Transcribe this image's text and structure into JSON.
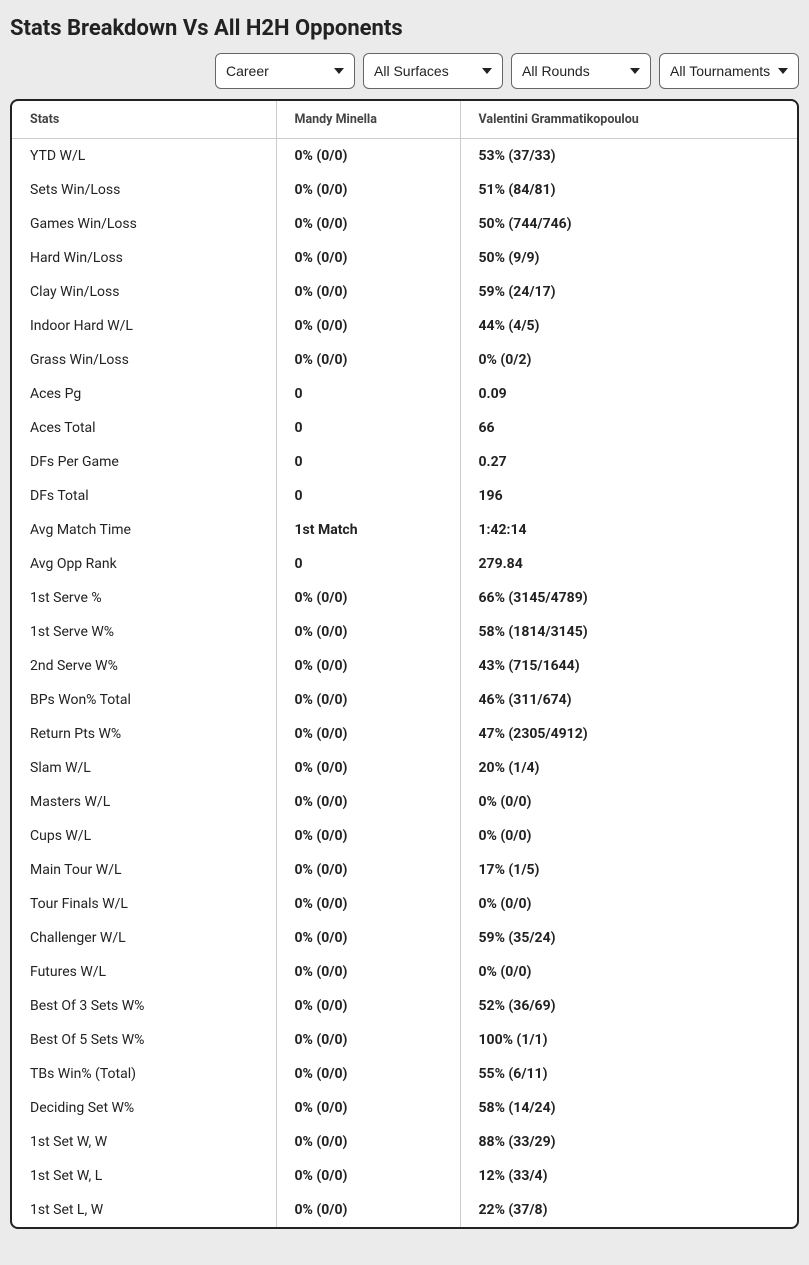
{
  "title": "Stats Breakdown Vs All H2H Opponents",
  "filters": {
    "career": "Career",
    "surfaces": "All Surfaces",
    "rounds": "All Rounds",
    "tournaments": "All Tournaments"
  },
  "table": {
    "columns": {
      "stats": "Stats",
      "p1": "Mandy Minella",
      "p2": "Valentini Grammatikopoulou"
    },
    "rows": [
      {
        "stat": "YTD W/L",
        "p1": "0% (0/0)",
        "p2": "53% (37/33)"
      },
      {
        "stat": "Sets Win/Loss",
        "p1": "0% (0/0)",
        "p2": "51% (84/81)"
      },
      {
        "stat": "Games Win/Loss",
        "p1": "0% (0/0)",
        "p2": "50% (744/746)"
      },
      {
        "stat": "Hard Win/Loss",
        "p1": "0% (0/0)",
        "p2": "50% (9/9)"
      },
      {
        "stat": "Clay Win/Loss",
        "p1": "0% (0/0)",
        "p2": "59% (24/17)"
      },
      {
        "stat": "Indoor Hard W/L",
        "p1": "0% (0/0)",
        "p2": "44% (4/5)"
      },
      {
        "stat": "Grass Win/Loss",
        "p1": "0% (0/0)",
        "p2": "0% (0/2)"
      },
      {
        "stat": "Aces Pg",
        "p1": "0",
        "p2": "0.09"
      },
      {
        "stat": "Aces Total",
        "p1": "0",
        "p2": "66"
      },
      {
        "stat": "DFs Per Game",
        "p1": "0",
        "p2": "0.27"
      },
      {
        "stat": "DFs Total",
        "p1": "0",
        "p2": "196"
      },
      {
        "stat": "Avg Match Time",
        "p1": "1st Match",
        "p2": "1:42:14"
      },
      {
        "stat": "Avg Opp Rank",
        "p1": "0",
        "p2": "279.84"
      },
      {
        "stat": "1st Serve %",
        "p1": "0% (0/0)",
        "p2": "66% (3145/4789)"
      },
      {
        "stat": "1st Serve W%",
        "p1": "0% (0/0)",
        "p2": "58% (1814/3145)"
      },
      {
        "stat": "2nd Serve W%",
        "p1": "0% (0/0)",
        "p2": "43% (715/1644)"
      },
      {
        "stat": "BPs Won% Total",
        "p1": "0% (0/0)",
        "p2": "46% (311/674)"
      },
      {
        "stat": "Return Pts W%",
        "p1": "0% (0/0)",
        "p2": "47% (2305/4912)"
      },
      {
        "stat": "Slam W/L",
        "p1": "0% (0/0)",
        "p2": "20% (1/4)"
      },
      {
        "stat": "Masters W/L",
        "p1": "0% (0/0)",
        "p2": "0% (0/0)"
      },
      {
        "stat": "Cups W/L",
        "p1": "0% (0/0)",
        "p2": "0% (0/0)"
      },
      {
        "stat": "Main Tour W/L",
        "p1": "0% (0/0)",
        "p2": "17% (1/5)"
      },
      {
        "stat": "Tour Finals W/L",
        "p1": "0% (0/0)",
        "p2": "0% (0/0)"
      },
      {
        "stat": "Challenger W/L",
        "p1": "0% (0/0)",
        "p2": "59% (35/24)"
      },
      {
        "stat": "Futures W/L",
        "p1": "0% (0/0)",
        "p2": "0% (0/0)"
      },
      {
        "stat": "Best Of 3 Sets W%",
        "p1": "0% (0/0)",
        "p2": "52% (36/69)"
      },
      {
        "stat": "Best Of 5 Sets W%",
        "p1": "0% (0/0)",
        "p2": "100% (1/1)"
      },
      {
        "stat": "TBs Win% (Total)",
        "p1": "0% (0/0)",
        "p2": "55% (6/11)"
      },
      {
        "stat": "Deciding Set W%",
        "p1": "0% (0/0)",
        "p2": "58% (14/24)"
      },
      {
        "stat": "1st Set W, W",
        "p1": "0% (0/0)",
        "p2": "88% (33/29)"
      },
      {
        "stat": "1st Set W, L",
        "p1": "0% (0/0)",
        "p2": "12% (33/4)"
      },
      {
        "stat": "1st Set L, W",
        "p1": "0% (0/0)",
        "p2": "22% (37/8)"
      }
    ]
  },
  "style": {
    "page_bg": "#ebebeb",
    "panel_bg": "#ffffff",
    "border_color": "#222222",
    "grid_color": "#cccccc",
    "title_fontsize": 22,
    "header_fontsize": 12.5,
    "cell_fontsize": 14,
    "col_widths": {
      "stats": 264,
      "p1": 184,
      "p2": 326
    }
  }
}
